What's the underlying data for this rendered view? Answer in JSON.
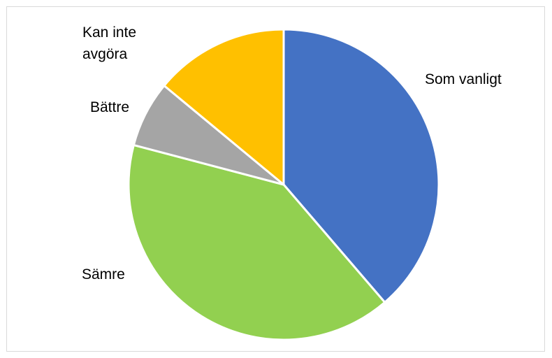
{
  "chart_data": {
    "type": "pie",
    "title": "",
    "categories": [
      "Som vanligt",
      "Sämre",
      "Bättre",
      "Kan inte avgöra"
    ],
    "values": [
      38.7,
      40.4,
      6.9,
      14.0
    ],
    "unit": "%",
    "colors": [
      "#4472C4",
      "#92D050",
      "#A5A5A5",
      "#FFC000"
    ],
    "start_angle_deg": 0,
    "direction": "clockwise",
    "legend": "none",
    "labels": [
      {
        "lines": [
          "Som vanligt"
        ]
      },
      {
        "lines": [
          "Sämre"
        ]
      },
      {
        "lines": [
          "Bättre"
        ]
      },
      {
        "lines": [
          "Kan inte",
          "avgöra"
        ]
      }
    ]
  }
}
